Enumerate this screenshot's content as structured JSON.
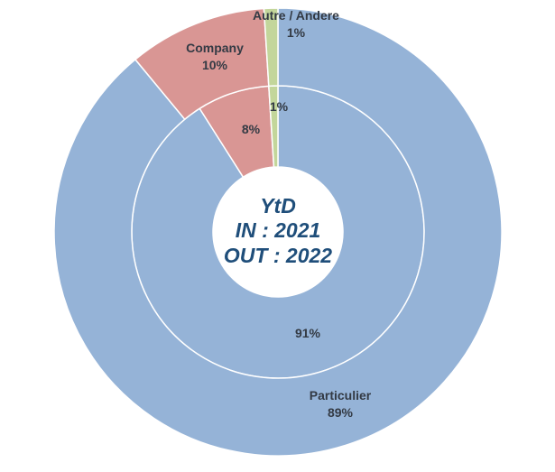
{
  "chart_data": {
    "type": "pie",
    "subtype": "double-donut",
    "center_text": [
      "YtD",
      "IN : 2021",
      "OUT : 2022"
    ],
    "series": [
      {
        "name": "",
        "ring": "inner",
        "categories": [
          "Particulier",
          "Company",
          "Autre / Andere"
        ],
        "values": [
          91,
          8,
          1
        ],
        "labels": [
          "91%",
          "8%",
          "1%"
        ]
      },
      {
        "name": "",
        "ring": "outer",
        "categories": [
          "Particulier",
          "Company",
          "Autre / Andere"
        ],
        "values": [
          89,
          10,
          1
        ],
        "labels": [
          "89%",
          "10%",
          "1%"
        ]
      }
    ],
    "colors": {
      "Particulier": "#95b3d7",
      "Company": "#d99694",
      "Autre / Andere": "#c3d69b"
    },
    "start": "top, clockwise",
    "legend": "none"
  }
}
